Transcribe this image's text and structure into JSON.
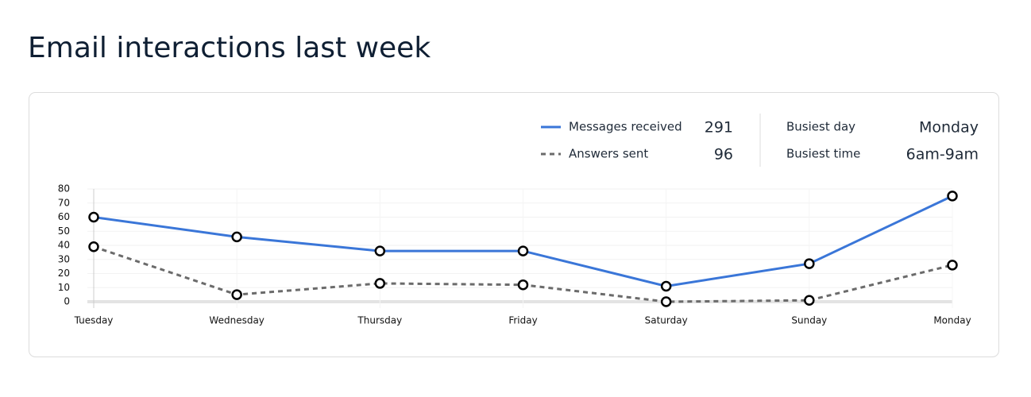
{
  "title": "Email interactions last week",
  "stats": [
    {
      "label": "Busiest day",
      "value": "Monday"
    },
    {
      "label": "Busiest time",
      "value": "6am-9am"
    }
  ],
  "chart_data": {
    "type": "line",
    "categories": [
      "Tuesday",
      "Wednesday",
      "Thursday",
      "Friday",
      "Saturday",
      "Sunday",
      "Monday"
    ],
    "series": [
      {
        "name": "Messages received",
        "total": 291,
        "color": "#3a76d8",
        "style": "solid",
        "values": [
          60,
          46,
          36,
          36,
          11,
          27,
          75
        ]
      },
      {
        "name": "Answers sent",
        "total": 96,
        "color": "#6b6b6b",
        "style": "dashed",
        "values": [
          39,
          5,
          13,
          12,
          0,
          1,
          26
        ]
      }
    ],
    "ylim": [
      0,
      80
    ],
    "yticks": [
      0,
      10,
      20,
      30,
      40,
      50,
      60,
      70,
      80
    ],
    "grid": true
  }
}
